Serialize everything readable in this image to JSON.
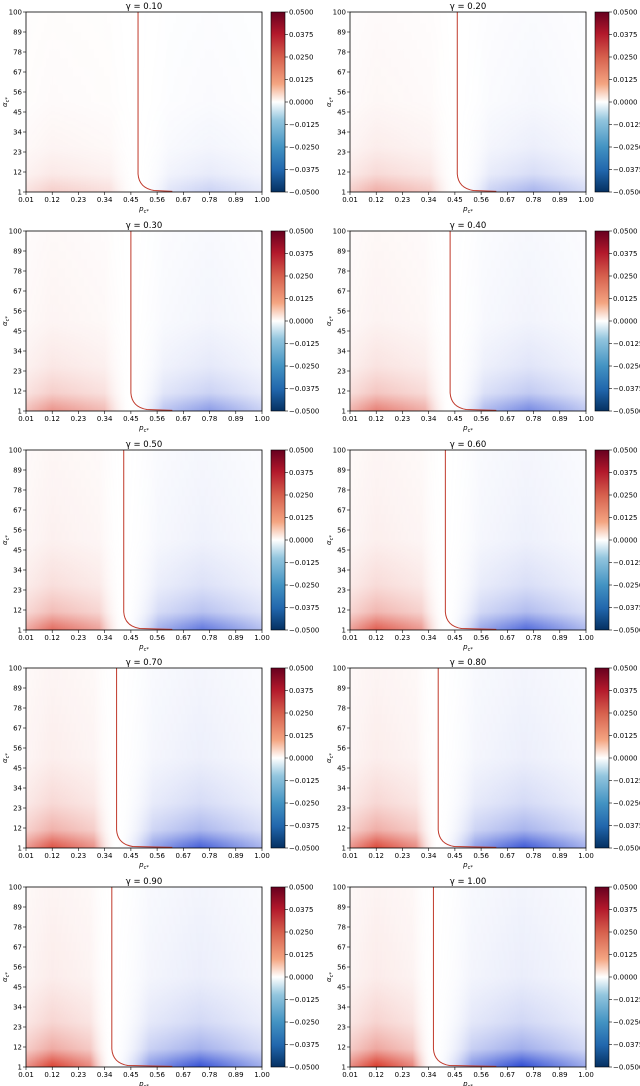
{
  "figure": {
    "colorbar_ticks": [
      "0.0500",
      "0.0375",
      "0.0250",
      "0.0125",
      "0.0000",
      "−0.0125",
      "−0.0250",
      "−0.0375",
      "−0.0500"
    ],
    "colormap": {
      "low": "#053061",
      "mid": "#ffffff",
      "high": "#67001f",
      "red": "#d7301f",
      "blue": "#2140d0"
    },
    "contour_color": "#c0392b"
  },
  "chart_data": [
    {
      "type": "heatmap",
      "title": "γ = 0.10",
      "xlabel": "p_{c*}",
      "ylabel": "α_{c*}",
      "x_ticks": [
        "0.01",
        "0.12",
        "0.23",
        "0.34",
        "0.45",
        "0.56",
        "0.67",
        "0.78",
        "0.89",
        "1.00"
      ],
      "y_ticks": [
        "1",
        "12",
        "23",
        "34",
        "45",
        "56",
        "67",
        "78",
        "89",
        "100"
      ],
      "xlim": [
        0.01,
        1.0
      ],
      "ylim": [
        1,
        100
      ],
      "zlim": [
        -0.05,
        0.05
      ],
      "zero_contour_p": 0.48,
      "peak_pos_p": 0.12,
      "peak_neg_p": 0.78,
      "intensity": 0.25
    },
    {
      "type": "heatmap",
      "title": "γ = 0.20",
      "xlabel": "p_{c*}",
      "ylabel": "α_{c*}",
      "x_ticks": [
        "0.01",
        "0.12",
        "0.23",
        "0.34",
        "0.45",
        "0.56",
        "0.67",
        "0.78",
        "0.89",
        "1.00"
      ],
      "y_ticks": [
        "1",
        "12",
        "23",
        "34",
        "45",
        "56",
        "67",
        "78",
        "89",
        "100"
      ],
      "xlim": [
        0.01,
        1.0
      ],
      "ylim": [
        1,
        100
      ],
      "zlim": [
        -0.05,
        0.05
      ],
      "zero_contour_p": 0.46,
      "peak_pos_p": 0.12,
      "peak_neg_p": 0.78,
      "intensity": 0.42
    },
    {
      "type": "heatmap",
      "title": "γ = 0.30",
      "xlabel": "p_{c*}",
      "ylabel": "α_{c*}",
      "x_ticks": [
        "0.01",
        "0.12",
        "0.23",
        "0.34",
        "0.45",
        "0.56",
        "0.67",
        "0.78",
        "0.89",
        "1.00"
      ],
      "y_ticks": [
        "1",
        "12",
        "23",
        "34",
        "45",
        "56",
        "67",
        "78",
        "89",
        "100"
      ],
      "xlim": [
        0.01,
        1.0
      ],
      "ylim": [
        1,
        100
      ],
      "zlim": [
        -0.05,
        0.05
      ],
      "zero_contour_p": 0.45,
      "peak_pos_p": 0.12,
      "peak_neg_p": 0.78,
      "intensity": 0.55
    },
    {
      "type": "heatmap",
      "title": "γ = 0.40",
      "xlabel": "p_{c*}",
      "ylabel": "α_{c*}",
      "x_ticks": [
        "0.01",
        "0.12",
        "0.23",
        "0.34",
        "0.45",
        "0.56",
        "0.67",
        "0.78",
        "0.89",
        "1.00"
      ],
      "y_ticks": [
        "1",
        "12",
        "23",
        "34",
        "45",
        "56",
        "67",
        "78",
        "89",
        "100"
      ],
      "xlim": [
        0.01,
        1.0
      ],
      "ylim": [
        1,
        100
      ],
      "zlim": [
        -0.05,
        0.05
      ],
      "zero_contour_p": 0.43,
      "peak_pos_p": 0.12,
      "peak_neg_p": 0.76,
      "intensity": 0.65
    },
    {
      "type": "heatmap",
      "title": "γ = 0.50",
      "xlabel": "p_{c*}",
      "ylabel": "α_{c*}",
      "x_ticks": [
        "0.01",
        "0.12",
        "0.23",
        "0.34",
        "0.45",
        "0.56",
        "0.67",
        "0.78",
        "0.89",
        "1.00"
      ],
      "y_ticks": [
        "1",
        "12",
        "23",
        "34",
        "45",
        "56",
        "67",
        "78",
        "89",
        "100"
      ],
      "xlim": [
        0.01,
        1.0
      ],
      "ylim": [
        1,
        100
      ],
      "zlim": [
        -0.05,
        0.05
      ],
      "zero_contour_p": 0.42,
      "peak_pos_p": 0.12,
      "peak_neg_p": 0.75,
      "intensity": 0.75
    },
    {
      "type": "heatmap",
      "title": "γ = 0.60",
      "xlabel": "p_{c*}",
      "ylabel": "α_{c*}",
      "x_ticks": [
        "0.01",
        "0.12",
        "0.23",
        "0.34",
        "0.45",
        "0.56",
        "0.67",
        "0.78",
        "0.89",
        "1.00"
      ],
      "y_ticks": [
        "1",
        "12",
        "23",
        "34",
        "45",
        "56",
        "67",
        "78",
        "89",
        "100"
      ],
      "xlim": [
        0.01,
        1.0
      ],
      "ylim": [
        1,
        100
      ],
      "zlim": [
        -0.05,
        0.05
      ],
      "zero_contour_p": 0.41,
      "peak_pos_p": 0.12,
      "peak_neg_p": 0.75,
      "intensity": 0.82
    },
    {
      "type": "heatmap",
      "title": "γ = 0.70",
      "xlabel": "p_{c*}",
      "ylabel": "α_{c*}",
      "x_ticks": [
        "0.01",
        "0.12",
        "0.23",
        "0.34",
        "0.45",
        "0.56",
        "0.67",
        "0.78",
        "0.89",
        "1.00"
      ],
      "y_ticks": [
        "1",
        "12",
        "23",
        "34",
        "45",
        "56",
        "67",
        "78",
        "89",
        "100"
      ],
      "xlim": [
        0.01,
        1.0
      ],
      "ylim": [
        1,
        100
      ],
      "zlim": [
        -0.05,
        0.05
      ],
      "zero_contour_p": 0.39,
      "peak_pos_p": 0.12,
      "peak_neg_p": 0.74,
      "intensity": 0.88
    },
    {
      "type": "heatmap",
      "title": "γ = 0.80",
      "xlabel": "p_{c*}",
      "ylabel": "α_{c*}",
      "x_ticks": [
        "0.01",
        "0.12",
        "0.23",
        "0.34",
        "0.45",
        "0.56",
        "0.67",
        "0.78",
        "0.89",
        "1.00"
      ],
      "y_ticks": [
        "1",
        "12",
        "23",
        "34",
        "45",
        "56",
        "67",
        "78",
        "89",
        "100"
      ],
      "xlim": [
        0.01,
        1.0
      ],
      "ylim": [
        1,
        100
      ],
      "zlim": [
        -0.05,
        0.05
      ],
      "zero_contour_p": 0.38,
      "peak_pos_p": 0.12,
      "peak_neg_p": 0.74,
      "intensity": 0.92
    },
    {
      "type": "heatmap",
      "title": "γ = 0.90",
      "xlabel": "p_{c*}",
      "ylabel": "α_{c*}",
      "x_ticks": [
        "0.01",
        "0.12",
        "0.23",
        "0.34",
        "0.45",
        "0.56",
        "0.67",
        "0.78",
        "0.89",
        "1.00"
      ],
      "y_ticks": [
        "1",
        "12",
        "23",
        "34",
        "45",
        "56",
        "67",
        "78",
        "89",
        "100"
      ],
      "xlim": [
        0.01,
        1.0
      ],
      "ylim": [
        1,
        100
      ],
      "zlim": [
        -0.05,
        0.05
      ],
      "zero_contour_p": 0.37,
      "peak_pos_p": 0.12,
      "peak_neg_p": 0.74,
      "intensity": 0.96
    },
    {
      "type": "heatmap",
      "title": "γ = 1.00",
      "xlabel": "p_{c*}",
      "ylabel": "α_{c*}",
      "x_ticks": [
        "0.01",
        "0.12",
        "0.23",
        "0.34",
        "0.45",
        "0.56",
        "0.67",
        "0.78",
        "0.89",
        "1.00"
      ],
      "y_ticks": [
        "1",
        "12",
        "23",
        "34",
        "45",
        "56",
        "67",
        "78",
        "89",
        "100"
      ],
      "xlim": [
        0.01,
        1.0
      ],
      "ylim": [
        1,
        100
      ],
      "zlim": [
        -0.05,
        0.05
      ],
      "zero_contour_p": 0.36,
      "peak_pos_p": 0.12,
      "peak_neg_p": 0.73,
      "intensity": 1.0
    }
  ]
}
